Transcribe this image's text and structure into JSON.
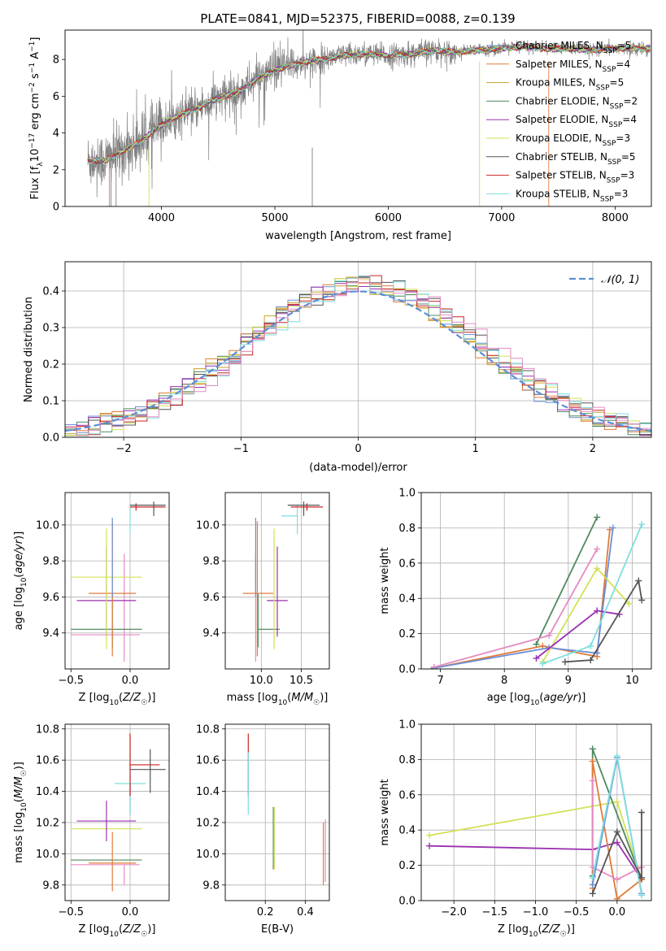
{
  "figure": {
    "title": "PLATE=0841, MJD=52375, FIBERID=0088, z=0.139"
  },
  "series_colors": {
    "Chabrier MILES": "#6a8fd8",
    "Salpeter MILES": "#e07b39",
    "Kroupa MILES": "#c9a227",
    "Chabrier ELODIE": "#4f8a5e",
    "Salpeter ELODIE": "#9b30b0",
    "Kroupa ELODIE": "#d4e157",
    "Chabrier STELIB": "#555555",
    "Salpeter STELIB": "#cc2222",
    "Kroupa STELIB": "#7fdede",
    "Pink": "#e58bc2",
    "data": "#808080"
  },
  "chart_data": [
    {
      "id": "spectrum",
      "type": "line",
      "title": "PLATE=0841, MJD=52375, FIBERID=0088, z=0.139",
      "xlabel": "wavelength [Angstrom, rest frame]",
      "ylabel": "Flux [f_λ 10^-17 erg cm^-2 s^-1 A^-1]",
      "xlim": [
        3150,
        8320
      ],
      "ylim": [
        0,
        9.6
      ],
      "xticks": [
        4000,
        5000,
        6000,
        7000,
        8000
      ],
      "yticks": [
        0,
        2,
        4,
        6,
        8
      ],
      "grid": false,
      "legend_position": "right",
      "continuum": {
        "x": [
          3350,
          3500,
          3650,
          3800,
          3950,
          4100,
          4300,
          4500,
          4700,
          4850,
          5000,
          5200,
          5400,
          5600,
          5800,
          6000,
          6200,
          6400,
          6600,
          6800,
          7000,
          7200,
          7400,
          7600,
          7800,
          8000,
          8200,
          8300
        ],
        "y": [
          2.5,
          2.5,
          3.0,
          3.5,
          4.2,
          4.8,
          5.3,
          5.9,
          6.3,
          7.0,
          7.4,
          7.8,
          8.0,
          8.2,
          8.3,
          8.2,
          8.3,
          8.5,
          8.4,
          8.5,
          8.6,
          8.7,
          8.6,
          8.6,
          8.5,
          8.6,
          8.6,
          8.6
        ]
      },
      "series": [
        {
          "name": "Chabrier MILES",
          "color": "#6a8fd8",
          "nssp": "5"
        },
        {
          "name": "Salpeter MILES",
          "color": "#e07b39",
          "nssp": "4"
        },
        {
          "name": "Kroupa MILES",
          "color": "#c9a227",
          "nssp": "5"
        },
        {
          "name": "Chabrier ELODIE",
          "color": "#4f8a5e",
          "nssp": "2"
        },
        {
          "name": "Salpeter ELODIE",
          "color": "#9b30b0",
          "nssp": "4"
        },
        {
          "name": "Kroupa ELODIE",
          "color": "#d4e157",
          "nssp": "3"
        },
        {
          "name": "Chabrier STELIB",
          "color": "#555555",
          "nssp": "5"
        },
        {
          "name": "Salpeter STELIB",
          "color": "#cc2222",
          "nssp": "3"
        },
        {
          "name": "Kroupa STELIB",
          "color": "#7fdede",
          "nssp": "3"
        }
      ]
    },
    {
      "id": "residuals",
      "type": "line",
      "xlabel": "(data-model)/error",
      "ylabel": "Normed distribution",
      "xlim": [
        -2.5,
        2.5
      ],
      "ylim": [
        0,
        0.48
      ],
      "xticks": [
        -2,
        -1,
        0,
        1,
        2
      ],
      "yticks": [
        0.0,
        0.1,
        0.2,
        0.3,
        0.4
      ],
      "grid": true,
      "legend_position": "top-right",
      "legend": [
        "𝒩(0, 1)"
      ],
      "gaussian": {
        "mean": 0,
        "sigma": 1,
        "color": "#5b8fd6",
        "dashed": true
      },
      "bin_width": 0.1,
      "histograms_from": "series_colors"
    },
    {
      "id": "age-vs-Z",
      "type": "scatter",
      "xlabel": "Z [log10(Z/Z☉)]",
      "ylabel": "age [log10(age/yr)]",
      "xlim": [
        -0.55,
        0.33
      ],
      "ylim": [
        9.2,
        10.18
      ],
      "xticks": [
        -0.5,
        0.0
      ],
      "yticks": [
        9.4,
        9.6,
        9.8,
        10.0
      ],
      "grid": true,
      "errorbars": [
        {
          "color": "#e58bc2",
          "x": -0.05,
          "xerr": [
            0.45,
            0.13
          ],
          "y": 9.39,
          "yerr": [
            0.15,
            0.45
          ]
        },
        {
          "color": "#4f8a5e",
          "x": -0.15,
          "xerr": [
            0.35,
            0.25
          ],
          "y": 9.42,
          "yerr": [
            0.1,
            0.2
          ]
        },
        {
          "color": "#9b30b0",
          "x": -0.2,
          "xerr": [
            0.25,
            0.25
          ],
          "y": 9.58,
          "yerr": [
            0.2,
            0.3
          ]
        },
        {
          "color": "#e07b39",
          "x": -0.15,
          "xerr": [
            0.2,
            0.2
          ],
          "y": 9.62,
          "yerr": [
            0.35,
            0.4
          ]
        },
        {
          "color": "#d4e157",
          "x": -0.2,
          "xerr": [
            0.3,
            0.3
          ],
          "y": 9.71,
          "yerr": [
            0.4,
            0.27
          ]
        },
        {
          "color": "#6a8fd8",
          "x": -0.15,
          "xerr": [
            0.0,
            0.0
          ],
          "y": 9.9,
          "yerr": [
            0.3,
            0.14
          ]
        },
        {
          "color": "#7fdede",
          "x": 0.0,
          "xerr": [
            0.0,
            0.0
          ],
          "y": 10.05,
          "yerr": [
            0.1,
            0.06
          ]
        },
        {
          "color": "#cc2222",
          "x": 0.05,
          "xerr": [
            0.05,
            0.25
          ],
          "y": 10.1,
          "yerr": [
            0.02,
            0.02
          ]
        },
        {
          "color": "#555555",
          "x": 0.2,
          "xerr": [
            0.2,
            0.1
          ],
          "y": 10.11,
          "yerr": [
            0.06,
            0.02
          ]
        }
      ]
    },
    {
      "id": "age-vs-mass",
      "type": "scatter",
      "xlabel": "mass [log10(M/M☉)]",
      "ylabel": "",
      "xlim": [
        9.55,
        10.85
      ],
      "ylim": [
        9.2,
        10.18
      ],
      "xticks": [
        10.0,
        10.5
      ],
      "yticks": [
        9.4,
        9.6,
        9.8,
        10.0
      ],
      "grid": true,
      "errorbars": [
        {
          "color": "#e58bc2",
          "x": 9.93,
          "xerr": [
            0.0,
            0.0
          ],
          "y": 9.39,
          "yerr": [
            0.15,
            0.45
          ]
        },
        {
          "color": "#4f8a5e",
          "x": 9.96,
          "xerr": [
            0.0,
            0.27
          ],
          "y": 9.42,
          "yerr": [
            0.1,
            0.2
          ]
        },
        {
          "color": "#9b30b0",
          "x": 10.2,
          "xerr": [
            0.13,
            0.13
          ],
          "y": 9.58,
          "yerr": [
            0.2,
            0.3
          ]
        },
        {
          "color": "#e07b39",
          "x": 9.95,
          "xerr": [
            0.18,
            0.2
          ],
          "y": 9.62,
          "yerr": [
            0.35,
            0.4
          ]
        },
        {
          "color": "#d4e157",
          "x": 10.16,
          "xerr": [
            0.0,
            0.0
          ],
          "y": 9.71,
          "yerr": [
            0.4,
            0.27
          ]
        },
        {
          "color": "#6a8fd8",
          "x": 9.93,
          "xerr": [
            0.0,
            0.0
          ],
          "y": 9.9,
          "yerr": [
            0.3,
            0.14
          ]
        },
        {
          "color": "#7fdede",
          "x": 10.45,
          "xerr": [
            0.2,
            0.0
          ],
          "y": 10.05,
          "yerr": [
            0.1,
            0.06
          ]
        },
        {
          "color": "#cc2222",
          "x": 10.57,
          "xerr": [
            0.2,
            0.2
          ],
          "y": 10.1,
          "yerr": [
            0.02,
            0.02
          ]
        },
        {
          "color": "#555555",
          "x": 10.53,
          "xerr": [
            0.2,
            0.2
          ],
          "y": 10.11,
          "yerr": [
            0.06,
            0.02
          ]
        }
      ]
    },
    {
      "id": "massweight-vs-age",
      "type": "line",
      "xlabel": "age [log10(age/yr)]",
      "ylabel": "mass weight",
      "xlim": [
        6.7,
        10.3
      ],
      "ylim": [
        0,
        1.0
      ],
      "xticks": [
        7,
        8,
        9,
        10
      ],
      "yticks": [
        0.0,
        0.2,
        0.4,
        0.6,
        0.8,
        1.0
      ],
      "grid": true,
      "series": [
        {
          "color": "#4f8a5e",
          "x": [
            8.5,
            9.45
          ],
          "y": [
            0.14,
            0.86
          ]
        },
        {
          "color": "#e07b39",
          "x": [
            6.9,
            8.6,
            9.45,
            9.65
          ],
          "y": [
            0.005,
            0.13,
            0.07,
            0.79
          ]
        },
        {
          "color": "#6a8fd8",
          "x": [
            6.9,
            8.7,
            9.45,
            9.7
          ],
          "y": [
            0.005,
            0.12,
            0.09,
            0.8
          ]
        },
        {
          "color": "#e58bc2",
          "x": [
            6.9,
            8.7,
            9.45
          ],
          "y": [
            0.01,
            0.19,
            0.68
          ]
        },
        {
          "color": "#d4e157",
          "x": [
            8.6,
            9.45,
            9.95
          ],
          "y": [
            0.04,
            0.57,
            0.37
          ]
        },
        {
          "color": "#9b30b0",
          "x": [
            8.5,
            9.45,
            9.8
          ],
          "y": [
            0.06,
            0.33,
            0.31
          ]
        },
        {
          "color": "#7fdede",
          "x": [
            8.6,
            9.35,
            10.15
          ],
          "y": [
            0.03,
            0.13,
            0.82
          ]
        },
        {
          "color": "#555555",
          "x": [
            8.95,
            9.35,
            10.1,
            10.15
          ],
          "y": [
            0.04,
            0.05,
            0.5,
            0.39
          ]
        }
      ]
    },
    {
      "id": "mass-vs-Z",
      "type": "scatter",
      "xlabel": "Z [log10(Z/Z☉)]",
      "ylabel": "mass [log10(M/M☉)]",
      "xlim": [
        -0.55,
        0.33
      ],
      "ylim": [
        9.7,
        10.83
      ],
      "xticks": [
        -0.5,
        0.0
      ],
      "yticks": [
        9.8,
        10.0,
        10.2,
        10.4,
        10.6,
        10.8
      ],
      "grid": true,
      "errorbars": [
        {
          "color": "#4f8a5e",
          "x": -0.15,
          "xerr": [
            0.35,
            0.25
          ],
          "y": 9.96,
          "yerr": [
            0.0,
            0.0
          ]
        },
        {
          "color": "#e58bc2",
          "x": -0.05,
          "xerr": [
            0.45,
            0.13
          ],
          "y": 9.93,
          "yerr": [
            0.13,
            0.0
          ]
        },
        {
          "color": "#e07b39",
          "x": -0.15,
          "xerr": [
            0.2,
            0.2
          ],
          "y": 9.94,
          "yerr": [
            0.18,
            0.2
          ]
        },
        {
          "color": "#d4e157",
          "x": -0.2,
          "xerr": [
            0.3,
            0.3
          ],
          "y": 10.16,
          "yerr": [
            0.0,
            0.0
          ]
        },
        {
          "color": "#9b30b0",
          "x": -0.2,
          "xerr": [
            0.25,
            0.25
          ],
          "y": 10.21,
          "yerr": [
            0.13,
            0.13
          ]
        },
        {
          "color": "#6a8fd8",
          "x": 0.0,
          "xerr": [
            0.0,
            0.0
          ],
          "y": 10.45,
          "yerr": [
            0.2,
            0.0
          ]
        },
        {
          "color": "#7fdede",
          "x": 0.0,
          "xerr": [
            0.13,
            0.13
          ],
          "y": 10.45,
          "yerr": [
            0.2,
            0.2
          ]
        },
        {
          "color": "#cc2222",
          "x": 0.0,
          "xerr": [
            0.0,
            0.25
          ],
          "y": 10.57,
          "yerr": [
            0.2,
            0.2
          ]
        },
        {
          "color": "#555555",
          "x": 0.17,
          "xerr": [
            0.17,
            0.13
          ],
          "y": 10.54,
          "yerr": [
            0.15,
            0.13
          ]
        }
      ]
    },
    {
      "id": "mass-vs-EBV",
      "type": "scatter",
      "xlabel": "E(B-V)",
      "ylabel": "",
      "xlim": [
        0.0,
        0.52
      ],
      "ylim": [
        9.7,
        10.83
      ],
      "xticks": [
        0.2,
        0.4
      ],
      "yticks": [
        9.8,
        10.0,
        10.2,
        10.4,
        10.6,
        10.8
      ],
      "grid": true,
      "errorbars": [
        {
          "color": "#cc2222",
          "x": 0.115,
          "y": 10.57,
          "yerr": [
            0.2,
            0.2
          ]
        },
        {
          "color": "#7fdede",
          "x": 0.115,
          "y": 10.45,
          "yerr": [
            0.2,
            0.2
          ]
        },
        {
          "color": "#4f8a5e",
          "x": 0.24,
          "y": 10.1,
          "yerr": [
            0.2,
            0.2
          ]
        },
        {
          "color": "#d4e157",
          "x": 0.245,
          "y": 10.1,
          "yerr": [
            0.2,
            0.2
          ]
        },
        {
          "color": "#e07b39",
          "x": 0.49,
          "y": 10.0,
          "yerr": [
            0.2,
            0.2
          ]
        },
        {
          "color": "#e58bc2",
          "x": 0.5,
          "y": 10.02,
          "yerr": [
            0.2,
            0.2
          ]
        }
      ]
    },
    {
      "id": "massweight-vs-Z",
      "type": "line",
      "xlabel": "Z [log10(Z/Z☉)]",
      "ylabel": "mass weight",
      "xlim": [
        -2.4,
        0.42
      ],
      "ylim": [
        0,
        1.0
      ],
      "xticks": [
        -2.0,
        -1.5,
        -1.0,
        -0.5,
        0.0
      ],
      "yticks": [
        0.0,
        0.2,
        0.4,
        0.6,
        0.8,
        1.0
      ],
      "grid": true,
      "series": [
        {
          "color": "#d4e157",
          "x": [
            -2.3,
            0.0,
            0.3
          ],
          "y": [
            0.37,
            0.56,
            0.12
          ]
        },
        {
          "color": "#9b30b0",
          "x": [
            -2.3,
            -0.3,
            0.0,
            0.3
          ],
          "y": [
            0.31,
            0.29,
            0.33,
            0.12
          ]
        },
        {
          "color": "#4f8a5e",
          "x": [
            -0.3,
            -0.3,
            0.3
          ],
          "y": [
            0.14,
            0.86,
            0.12
          ]
        },
        {
          "color": "#e07b39",
          "x": [
            -0.3,
            -0.3,
            0.0,
            0.3
          ],
          "y": [
            0.07,
            0.79,
            0.01,
            0.12
          ]
        },
        {
          "color": "#e58bc2",
          "x": [
            -0.3,
            -0.3,
            0.0,
            0.3
          ],
          "y": [
            0.68,
            0.19,
            0.12,
            0.19
          ]
        },
        {
          "color": "#6a8fd8",
          "x": [
            -0.3,
            0.0,
            0.3
          ],
          "y": [
            0.09,
            0.81,
            0.04
          ]
        },
        {
          "color": "#7fdede",
          "x": [
            -0.3,
            0.0,
            0.3
          ],
          "y": [
            0.13,
            0.82,
            0.03
          ]
        },
        {
          "color": "#555555",
          "x": [
            -0.3,
            0.0,
            0.3,
            0.3
          ],
          "y": [
            0.04,
            0.39,
            0.13,
            0.5
          ]
        }
      ]
    }
  ]
}
